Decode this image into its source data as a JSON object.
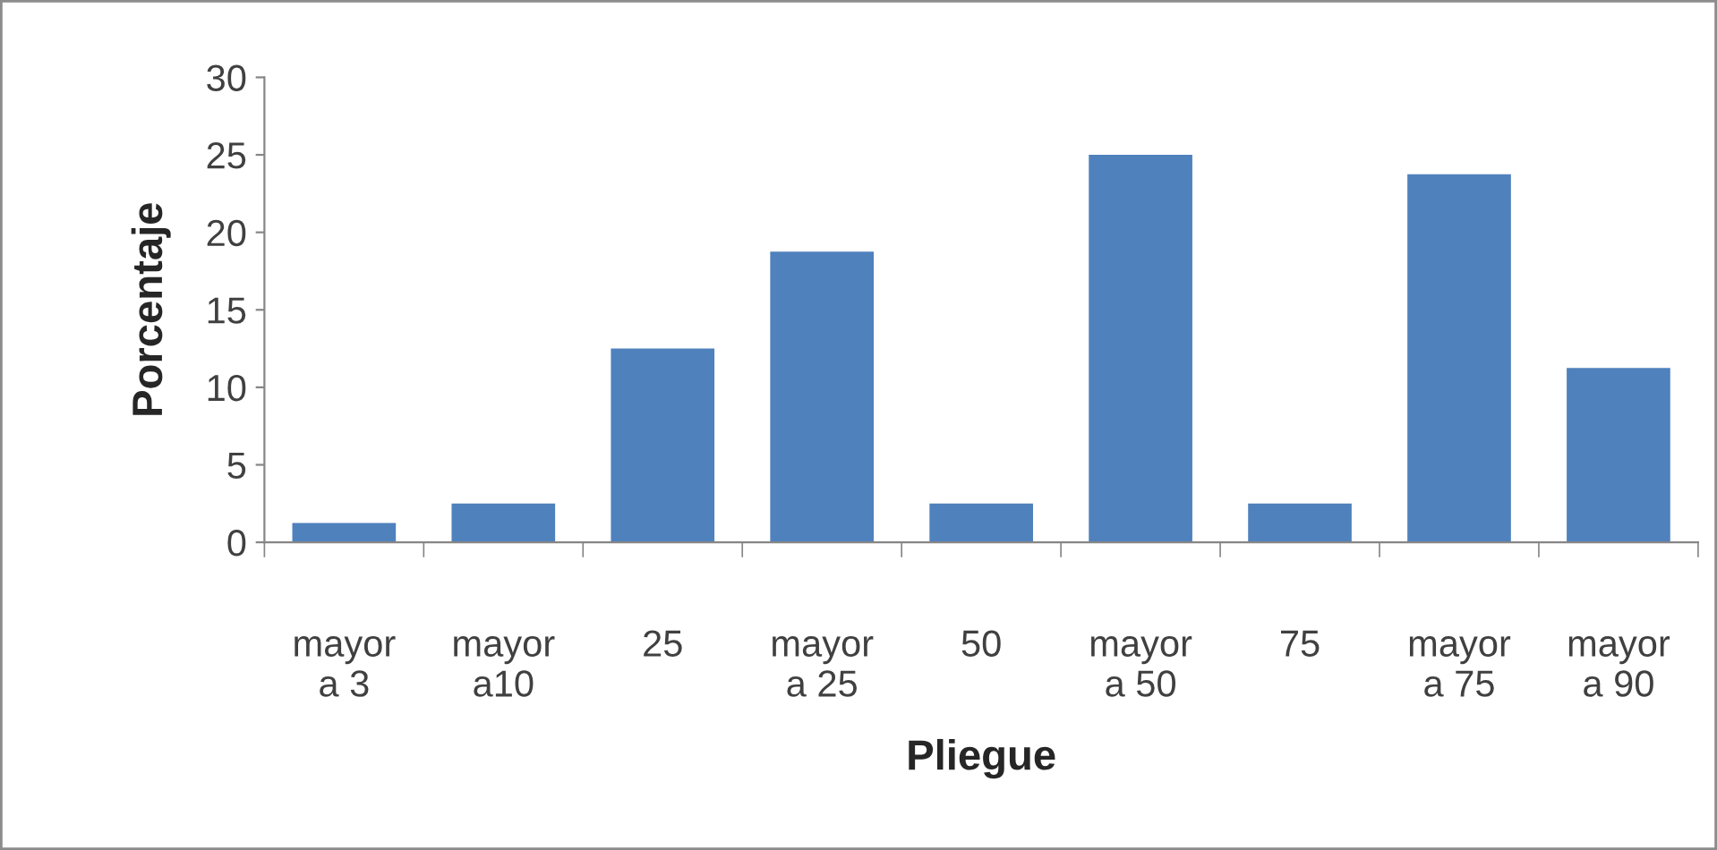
{
  "chart_data": {
    "type": "bar",
    "xlabel": "Pliegue",
    "ylabel": "Porcentaje",
    "categories": [
      "mayor\na 3",
      "mayor\na10",
      "25",
      "mayor\na 25",
      "50",
      "mayor\na 50",
      "75",
      "mayor\na 75",
      "mayor\na 90"
    ],
    "values": [
      1.25,
      2.5,
      12.5,
      18.75,
      2.5,
      25,
      2.5,
      23.75,
      11.25
    ],
    "color": "#4f81bd",
    "ylim": [
      0,
      30
    ],
    "yticks": [
      0,
      5,
      10,
      15,
      20,
      25,
      30
    ],
    "grid": false,
    "legend": false
  }
}
